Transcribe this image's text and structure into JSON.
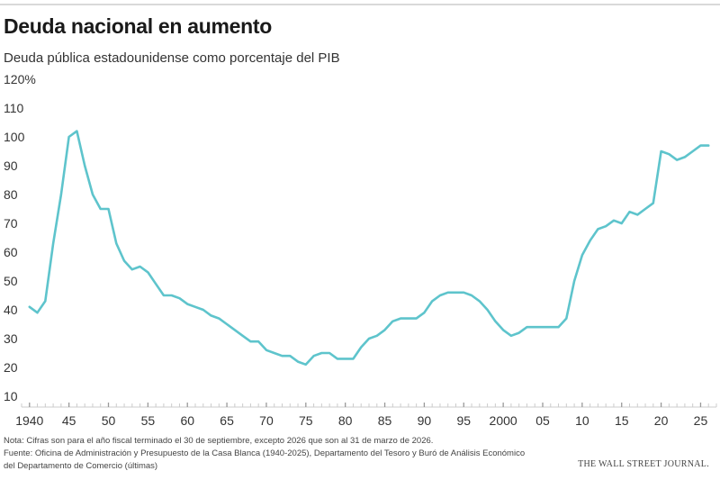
{
  "header": {
    "title": "Deuda nacional en aumento",
    "subtitle": "Deuda pública estadounidense como porcentaje del PIB"
  },
  "footer": {
    "note_line1": "Nota: Cifras son para el año fiscal terminado el 30 de septiembre, excepto 2026 que son al 31 de marzo de 2026.",
    "note_line2": "Fuente: Oficina de Administración y Presupuesto de la Casa Blanca (1940-2025), Departamento del Tesoro y Buró de Análisis Económico",
    "note_line3": "del Departamento de Comercio (últimas)",
    "credit": "THE WALL STREET JOURNAL."
  },
  "chart_data": {
    "type": "line",
    "title": "Deuda nacional en aumento",
    "subtitle": "Deuda pública estadounidense como porcentaje del PIB",
    "xlim": [
      1939,
      2027
    ],
    "ylim": [
      10,
      120
    ],
    "y_ticks": [
      {
        "value": 120,
        "label": "120%"
      },
      {
        "value": 110,
        "label": "110"
      },
      {
        "value": 100,
        "label": "100"
      },
      {
        "value": 90,
        "label": "90"
      },
      {
        "value": 80,
        "label": "80"
      },
      {
        "value": 70,
        "label": "70"
      },
      {
        "value": 60,
        "label": "60"
      },
      {
        "value": 50,
        "label": "50"
      },
      {
        "value": 40,
        "label": "40"
      },
      {
        "value": 30,
        "label": "30"
      },
      {
        "value": 20,
        "label": "20"
      },
      {
        "value": 10,
        "label": "10"
      }
    ],
    "x_ticks": [
      {
        "value": 1940,
        "label": "1940"
      },
      {
        "value": 1945,
        "label": "45"
      },
      {
        "value": 1950,
        "label": "50"
      },
      {
        "value": 1955,
        "label": "55"
      },
      {
        "value": 1960,
        "label": "60"
      },
      {
        "value": 1965,
        "label": "65"
      },
      {
        "value": 1970,
        "label": "70"
      },
      {
        "value": 1975,
        "label": "75"
      },
      {
        "value": 1980,
        "label": "80"
      },
      {
        "value": 1985,
        "label": "85"
      },
      {
        "value": 1990,
        "label": "90"
      },
      {
        "value": 1995,
        "label": "95"
      },
      {
        "value": 2000,
        "label": "2000"
      },
      {
        "value": 2005,
        "label": "05"
      },
      {
        "value": 2010,
        "label": "10"
      },
      {
        "value": 2015,
        "label": "15"
      },
      {
        "value": 2020,
        "label": "20"
      },
      {
        "value": 2025,
        "label": "25"
      }
    ],
    "grid": false,
    "line_color": "#5ec4cc",
    "series": [
      {
        "x": [
          1940,
          1941,
          1942,
          1943,
          1944,
          1945,
          1946,
          1947,
          1948,
          1949,
          1950,
          1951,
          1952,
          1953,
          1954,
          1955,
          1956,
          1957,
          1958,
          1959,
          1960,
          1961,
          1962,
          1963,
          1964,
          1965,
          1966,
          1967,
          1968,
          1969,
          1970,
          1971,
          1972,
          1973,
          1974,
          1975,
          1976,
          1977,
          1978,
          1979,
          1980,
          1981,
          1982,
          1983,
          1984,
          1985,
          1986,
          1987,
          1988,
          1989,
          1990,
          1991,
          1992,
          1993,
          1994,
          1995,
          1996,
          1997,
          1998,
          1999,
          2000,
          2001,
          2002,
          2003,
          2004,
          2005,
          2006,
          2007,
          2008,
          2009,
          2010,
          2011,
          2012,
          2013,
          2014,
          2015,
          2016,
          2017,
          2018,
          2019,
          2020,
          2021,
          2022,
          2023,
          2024,
          2025,
          2026
        ],
        "values": [
          41,
          39,
          43,
          63,
          80,
          100,
          102,
          90,
          80,
          75,
          75,
          63,
          57,
          54,
          55,
          53,
          49,
          45,
          45,
          44,
          42,
          41,
          40,
          38,
          37,
          35,
          33,
          31,
          29,
          29,
          26,
          25,
          24,
          24,
          22,
          21,
          24,
          25,
          25,
          23,
          23,
          23,
          27,
          30,
          31,
          33,
          36,
          37,
          37,
          37,
          39,
          43,
          45,
          46,
          46,
          46,
          45,
          43,
          40,
          36,
          33,
          31,
          32,
          34,
          34,
          34,
          34,
          34,
          37,
          50,
          59,
          64,
          68,
          69,
          71,
          70,
          74,
          73,
          75,
          77,
          95,
          94,
          92,
          93,
          95,
          97,
          97
        ]
      }
    ]
  }
}
